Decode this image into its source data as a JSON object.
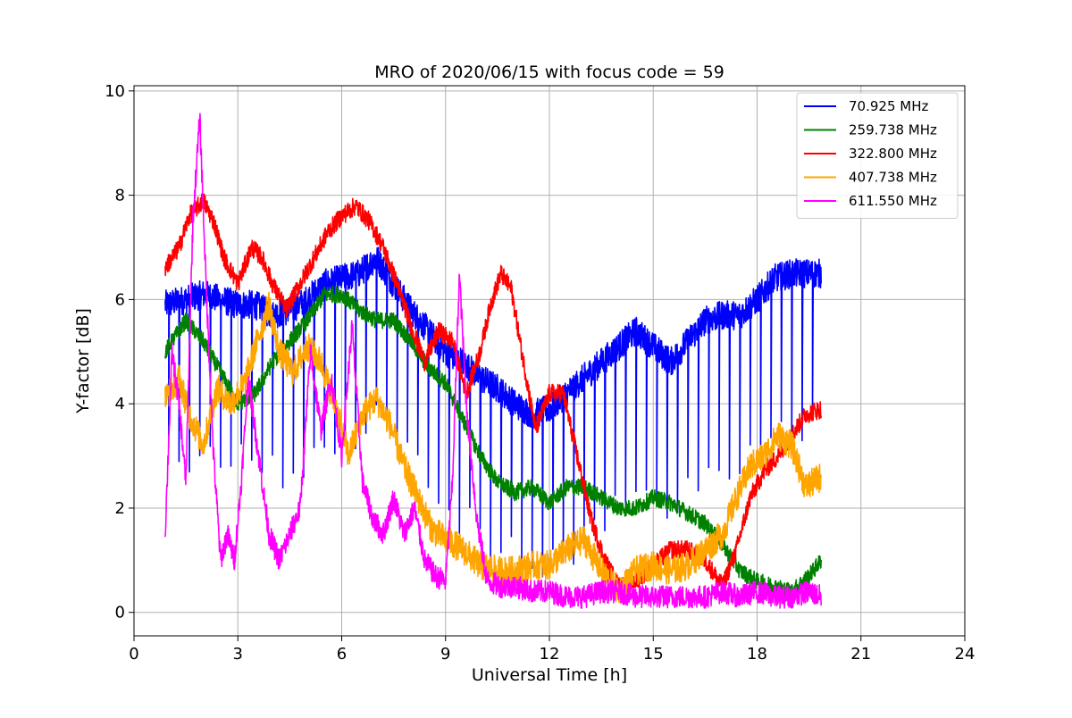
{
  "chart_data": {
    "type": "line",
    "title": "MRO of 2020/06/15 with focus code = 59",
    "xlabel": "Universal Time [h]",
    "ylabel": "Y-factor [dB]",
    "xlim": [
      0,
      24
    ],
    "ylim": [
      -0.45,
      10.1
    ],
    "xticks": [
      0,
      3,
      6,
      9,
      12,
      15,
      18,
      21,
      24
    ],
    "yticks": [
      0,
      2,
      4,
      6,
      8,
      10
    ],
    "xtick_labels": [
      "0",
      "3",
      "6",
      "9",
      "12",
      "15",
      "18",
      "21",
      "24"
    ],
    "ytick_labels": [
      "0",
      "2",
      "4",
      "6",
      "8",
      "10"
    ],
    "grid": true,
    "legend_position": "top-right",
    "series": [
      {
        "name": " 70.925 MHz",
        "color": "#0000ff",
        "x": [
          0.9,
          1.5,
          2.0,
          2.5,
          3.0,
          3.5,
          4.0,
          4.5,
          5.0,
          5.5,
          6.0,
          6.5,
          7.0,
          7.5,
          8.0,
          8.5,
          9.0,
          9.5,
          10.0,
          10.5,
          11.0,
          11.5,
          12.0,
          12.5,
          13.0,
          13.5,
          14.0,
          14.5,
          15.0,
          15.5,
          16.0,
          16.5,
          17.0,
          17.5,
          18.0,
          18.5,
          19.0,
          19.5,
          19.85
        ],
        "y": [
          5.9,
          6.0,
          6.1,
          6.0,
          5.9,
          5.9,
          5.7,
          5.8,
          6.0,
          6.3,
          6.4,
          6.5,
          6.8,
          6.3,
          5.8,
          5.4,
          5.0,
          4.8,
          4.5,
          4.3,
          4.0,
          3.8,
          3.9,
          4.2,
          4.5,
          4.8,
          5.1,
          5.4,
          5.1,
          4.8,
          5.2,
          5.6,
          5.7,
          5.7,
          6.0,
          6.4,
          6.5,
          6.5,
          6.5
        ],
        "dips": [
          1.0,
          1.3,
          1.6,
          1.9,
          2.2,
          2.5,
          2.8,
          3.1,
          3.4,
          3.7,
          4.0,
          4.3,
          4.6,
          4.9,
          5.2,
          5.5,
          5.8,
          6.1,
          6.4,
          6.7,
          7.0,
          7.3,
          7.6,
          7.9,
          8.2,
          8.5,
          8.8,
          9.1,
          9.4,
          9.7,
          10.0,
          10.3,
          10.6,
          10.9,
          11.2,
          11.5,
          11.8,
          12.1,
          12.4,
          12.7,
          13.0,
          13.3,
          13.6,
          13.9,
          14.2,
          14.5,
          14.8,
          15.1,
          15.4,
          15.7,
          16.0,
          16.3,
          16.6,
          16.9,
          17.2,
          17.5,
          17.8,
          18.1,
          18.4,
          18.7,
          19.0,
          19.3,
          19.6
        ]
      },
      {
        "name": "259.738 MHz",
        "color": "#008000",
        "x": [
          0.9,
          1.2,
          1.5,
          2.0,
          2.5,
          3.0,
          3.5,
          4.0,
          4.5,
          5.0,
          5.5,
          6.0,
          6.5,
          7.0,
          7.5,
          8.0,
          8.5,
          9.0,
          9.5,
          10.0,
          10.5,
          11.0,
          11.5,
          12.0,
          12.5,
          13.0,
          13.5,
          14.0,
          14.5,
          15.0,
          15.5,
          16.0,
          16.5,
          17.0,
          17.5,
          18.0,
          18.5,
          19.0,
          19.5,
          19.85
        ],
        "y": [
          5.0,
          5.3,
          5.6,
          5.2,
          4.6,
          4.0,
          4.2,
          4.8,
          5.2,
          5.6,
          6.1,
          6.1,
          5.8,
          5.6,
          5.6,
          5.2,
          4.7,
          4.4,
          3.7,
          3.0,
          2.5,
          2.3,
          2.4,
          2.1,
          2.4,
          2.4,
          2.2,
          2.0,
          2.0,
          2.2,
          2.1,
          1.9,
          1.7,
          1.3,
          0.8,
          0.6,
          0.5,
          0.4,
          0.7,
          1.0
        ]
      },
      {
        "name": "322.800 MHz",
        "color": "#ff0000",
        "x": [
          0.9,
          1.3,
          1.6,
          2.0,
          2.3,
          2.6,
          3.0,
          3.4,
          3.7,
          4.0,
          4.4,
          4.8,
          5.2,
          5.6,
          6.0,
          6.4,
          6.8,
          7.2,
          7.6,
          8.0,
          8.4,
          8.8,
          9.2,
          9.6,
          10.0,
          10.3,
          10.6,
          10.9,
          11.2,
          11.6,
          12.0,
          12.4,
          12.8,
          13.2,
          13.6,
          14.0,
          14.5,
          15.0,
          15.5,
          16.0,
          16.5,
          17.0,
          17.4,
          17.8,
          18.2,
          18.6,
          19.0,
          19.4,
          19.85
        ],
        "y": [
          6.6,
          7.0,
          7.6,
          7.9,
          7.5,
          6.8,
          6.3,
          7.0,
          6.8,
          6.3,
          5.8,
          6.3,
          6.8,
          7.3,
          7.6,
          7.8,
          7.5,
          7.0,
          6.3,
          5.5,
          4.8,
          5.4,
          5.2,
          4.2,
          5.0,
          5.9,
          6.5,
          6.2,
          5.0,
          3.5,
          4.2,
          4.2,
          3.0,
          1.8,
          1.0,
          0.5,
          0.6,
          0.9,
          1.2,
          1.2,
          1.0,
          0.5,
          1.2,
          2.2,
          2.7,
          3.0,
          3.4,
          3.8,
          3.9
        ]
      },
      {
        "name": "407.738 MHz",
        "color": "#ffa500",
        "x": [
          0.9,
          1.3,
          1.6,
          2.0,
          2.4,
          2.8,
          3.2,
          3.6,
          3.9,
          4.2,
          4.6,
          5.0,
          5.4,
          5.8,
          6.2,
          6.6,
          7.0,
          7.4,
          7.8,
          8.2,
          8.6,
          9.0,
          9.5,
          10.0,
          10.5,
          11.0,
          11.5,
          12.0,
          12.5,
          13.0,
          13.5,
          14.0,
          14.5,
          15.0,
          15.5,
          16.0,
          16.5,
          17.0,
          17.4,
          17.8,
          18.2,
          18.6,
          19.0,
          19.4,
          19.85
        ],
        "y": [
          4.1,
          4.5,
          3.8,
          3.2,
          4.3,
          4.0,
          4.4,
          5.3,
          5.9,
          5.0,
          4.6,
          5.1,
          4.8,
          4.0,
          3.0,
          3.8,
          4.1,
          3.6,
          2.8,
          2.2,
          1.6,
          1.4,
          1.2,
          0.9,
          0.8,
          0.8,
          0.9,
          0.9,
          1.2,
          1.4,
          0.8,
          0.4,
          0.8,
          0.9,
          0.8,
          0.9,
          1.2,
          1.5,
          2.2,
          2.8,
          3.0,
          3.4,
          3.2,
          2.4,
          2.6
        ]
      },
      {
        "name": "611.550 MHz",
        "color": "#ff00ff",
        "x": [
          0.9,
          1.1,
          1.3,
          1.5,
          1.7,
          1.9,
          2.1,
          2.3,
          2.5,
          2.7,
          2.9,
          3.1,
          3.3,
          3.6,
          3.9,
          4.2,
          4.5,
          4.8,
          5.1,
          5.4,
          5.7,
          6.0,
          6.3,
          6.6,
          6.9,
          7.2,
          7.5,
          7.8,
          8.1,
          8.4,
          8.7,
          9.0,
          9.2,
          9.4,
          9.6,
          9.9,
          10.2,
          10.6,
          11.0,
          11.5,
          12.0,
          12.5,
          13.0,
          13.5,
          14.0,
          14.5,
          15.0,
          15.5,
          16.0,
          16.5,
          17.0,
          17.5,
          18.0,
          18.5,
          19.0,
          19.5,
          19.85
        ],
        "y": [
          1.5,
          5.0,
          4.0,
          2.5,
          7.5,
          9.5,
          6.0,
          3.0,
          1.0,
          1.5,
          1.0,
          2.5,
          4.5,
          3.0,
          1.5,
          1.0,
          1.5,
          2.0,
          5.0,
          3.5,
          4.5,
          3.0,
          5.5,
          2.5,
          1.8,
          1.5,
          2.2,
          1.5,
          2.0,
          1.0,
          0.7,
          0.6,
          2.5,
          6.5,
          4.0,
          1.8,
          0.6,
          0.5,
          0.5,
          0.4,
          0.4,
          0.3,
          0.3,
          0.4,
          0.4,
          0.3,
          0.3,
          0.3,
          0.3,
          0.3,
          0.4,
          0.3,
          0.4,
          0.3,
          0.3,
          0.4,
          0.3
        ]
      }
    ]
  }
}
